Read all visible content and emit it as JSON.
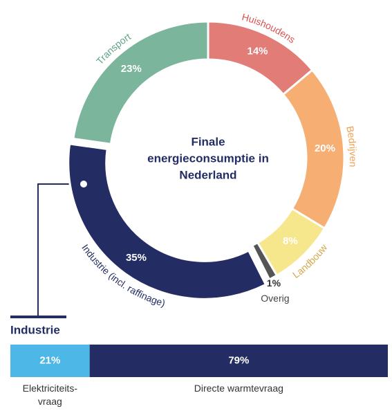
{
  "chart_data": [
    {
      "type": "pie",
      "title": [
        "Finale",
        "energieconsumptie in",
        "Nederland"
      ],
      "categories": [
        "Huishoudens",
        "Bedrijven",
        "Landbouw",
        "Overig",
        "Industrie (incl. raffinage)",
        "Transport"
      ],
      "values": [
        14,
        20,
        8,
        1,
        35,
        23
      ],
      "value_labels": [
        "14%",
        "20%",
        "8%",
        "1%",
        "35%",
        "23%"
      ],
      "colors": [
        "#e27c76",
        "#f7ae72",
        "#f6e68c",
        "#555555",
        "#232d63",
        "#7bb59b"
      ],
      "label_colors": [
        "#d9534f",
        "#f0a050",
        "#d4a94a",
        "#444444",
        "#232d63",
        "#5fa383"
      ]
    },
    {
      "type": "bar",
      "title": "Industrie",
      "categories": [
        "Elektriciteits-\nvraag",
        "Directe warmtevraag"
      ],
      "values": [
        21,
        79
      ],
      "value_labels": [
        "21%",
        "79%"
      ],
      "colors": [
        "#4db8e8",
        "#232d63"
      ]
    }
  ]
}
